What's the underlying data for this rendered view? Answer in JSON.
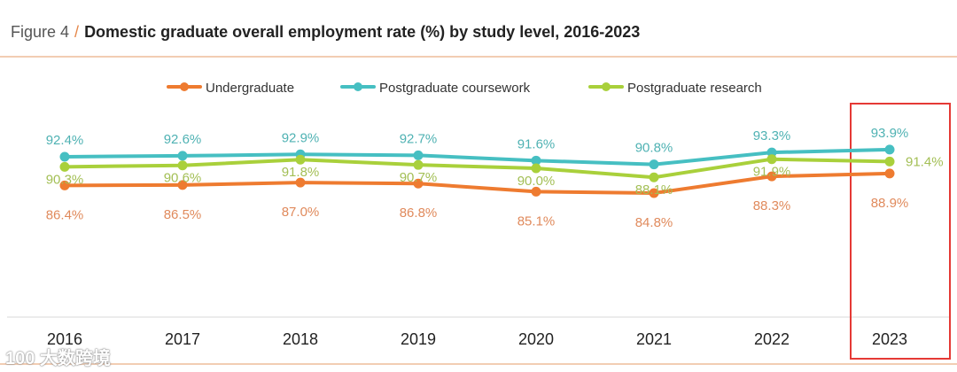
{
  "header": {
    "figure_label": "Figure 4",
    "separator": "/",
    "title": "Domestic graduate overall employment rate (%) by study level, 2016-2023"
  },
  "watermark": "100 大数跨境",
  "chart_data": {
    "type": "line",
    "title": "Domestic graduate overall employment rate (%) by study level, 2016-2023",
    "xlabel": "",
    "ylabel": "",
    "x": [
      "2016",
      "2017",
      "2018",
      "2019",
      "2020",
      "2021",
      "2022",
      "2023"
    ],
    "series": [
      {
        "name": "Undergraduate",
        "color": "#ee7b30",
        "label_color": "#e08a5c",
        "values": [
          86.4,
          86.5,
          87.0,
          86.8,
          85.1,
          84.8,
          88.3,
          88.9
        ]
      },
      {
        "name": "Postgraduate coursework",
        "color": "#46bfc2",
        "label_color": "#4fb2b3",
        "values": [
          92.4,
          92.6,
          92.9,
          92.7,
          91.6,
          90.8,
          93.3,
          93.9
        ]
      },
      {
        "name": "Postgraduate research",
        "color": "#a9d03b",
        "label_color": "#a3bf55",
        "values": [
          90.3,
          90.6,
          91.8,
          90.7,
          90.0,
          88.1,
          91.9,
          91.4
        ]
      }
    ],
    "data_labels": true,
    "legend_position": "top-center",
    "grid": false,
    "highlight": "2023"
  }
}
